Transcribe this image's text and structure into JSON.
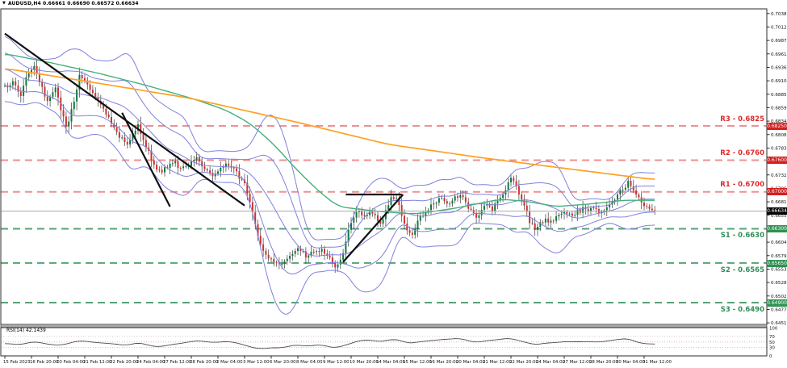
{
  "title": {
    "marker": "▼",
    "text": "AUDUSD,H4 0.66661 0.66690 0.66572 0.66634"
  },
  "chart_data": {
    "type": "candlestick",
    "symbol": "AUDUSD",
    "timeframe": "H4",
    "last_ohlc": {
      "open": 0.66661,
      "high": 0.6669,
      "low": 0.66572,
      "close": 0.66634
    },
    "price_axis": {
      "ticks": [
        "0.70380",
        "0.70125",
        "0.69870",
        "0.69615",
        "0.69360",
        "0.69105",
        "0.68850",
        "0.68595",
        "0.68340",
        "0.68085",
        "0.67830",
        "0.67575",
        "0.67320",
        "0.67065",
        "0.66810",
        "0.66555",
        "0.66300",
        "0.66045",
        "0.65790",
        "0.65535",
        "0.65280",
        "0.65025",
        "0.64770",
        "0.64515"
      ],
      "current_badge": "0.66634"
    },
    "time_axis": {
      "labels": [
        "15 Feb 2023",
        "16 Feb 20:00",
        "20 Feb 04:00",
        "21 Feb 12:00",
        "22 Feb 20:00",
        "24 Feb 04:00",
        "27 Feb 12:00",
        "28 Feb 20:00",
        "2 Mar 04:00",
        "3 Mar 12:00",
        "6 Mar 20:00",
        "8 Mar 04:00",
        "9 Mar 12:00",
        "10 Mar 20:00",
        "14 Mar 04:00",
        "15 Mar 12:00",
        "16 Mar 20:00",
        "20 Mar 04:00",
        "21 Mar 12:00",
        "22 Mar 20:00",
        "24 Mar 04:00",
        "27 Mar 12:00",
        "28 Mar 20:00",
        "30 Mar 04:00",
        "31 Mar 12:00"
      ]
    },
    "levels": {
      "r3": {
        "label": "R3 - 0.6825",
        "price": 0.6825,
        "badge": "0.68250"
      },
      "r2": {
        "label": "R2 - 0.6760",
        "price": 0.676,
        "badge": "0.67600"
      },
      "r1": {
        "label": "R1 - 0.6700",
        "price": 0.67,
        "badge": "0.67000"
      },
      "s1": {
        "label": "S1 - 0.6630",
        "price": 0.663,
        "badge": "0.66300"
      },
      "s2": {
        "label": "S2 - 0.6565",
        "price": 0.6565,
        "badge": "0.65650"
      },
      "s3": {
        "label": "S3 - 0.6490",
        "price": 0.649,
        "badge": "0.64900"
      }
    },
    "current_price": 0.66634,
    "bars": {
      "count": 245,
      "close_path_anchors": [
        [
          0,
          0.6898
        ],
        [
          3,
          0.6908
        ],
        [
          6,
          0.6885
        ],
        [
          9,
          0.6928
        ],
        [
          11,
          0.6934
        ],
        [
          14,
          0.6895
        ],
        [
          16,
          0.6868
        ],
        [
          19,
          0.6898
        ],
        [
          21,
          0.6858
        ],
        [
          23,
          0.6822
        ],
        [
          26,
          0.6868
        ],
        [
          28,
          0.6922
        ],
        [
          31,
          0.6905
        ],
        [
          34,
          0.688
        ],
        [
          37,
          0.6858
        ],
        [
          40,
          0.683
        ],
        [
          43,
          0.6806
        ],
        [
          46,
          0.6786
        ],
        [
          48,
          0.6808
        ],
        [
          50,
          0.6828
        ],
        [
          52,
          0.68
        ],
        [
          55,
          0.6762
        ],
        [
          58,
          0.6738
        ],
        [
          61,
          0.6748
        ],
        [
          64,
          0.6756
        ],
        [
          66,
          0.6742
        ],
        [
          69,
          0.675
        ],
        [
          72,
          0.6762
        ],
        [
          75,
          0.6745
        ],
        [
          78,
          0.673
        ],
        [
          81,
          0.6744
        ],
        [
          84,
          0.6752
        ],
        [
          87,
          0.6735
        ],
        [
          90,
          0.6714
        ],
        [
          92,
          0.668
        ],
        [
          94,
          0.6636
        ],
        [
          96,
          0.66
        ],
        [
          98,
          0.6582
        ],
        [
          101,
          0.657
        ],
        [
          104,
          0.6562
        ],
        [
          107,
          0.658
        ],
        [
          110,
          0.6592
        ],
        [
          113,
          0.6578
        ],
        [
          116,
          0.6585
        ],
        [
          119,
          0.659
        ],
        [
          122,
          0.6572
        ],
        [
          124,
          0.6558
        ],
        [
          127,
          0.658
        ],
        [
          129,
          0.6624
        ],
        [
          131,
          0.6654
        ],
        [
          133,
          0.666
        ],
        [
          135,
          0.665
        ],
        [
          137,
          0.6668
        ],
        [
          139,
          0.6652
        ],
        [
          141,
          0.6642
        ],
        [
          143,
          0.6662
        ],
        [
          145,
          0.6688
        ],
        [
          147,
          0.6684
        ],
        [
          149,
          0.6658
        ],
        [
          151,
          0.6625
        ],
        [
          153,
          0.6618
        ],
        [
          155,
          0.6648
        ],
        [
          157,
          0.6658
        ],
        [
          159,
          0.6668
        ],
        [
          161,
          0.6678
        ],
        [
          163,
          0.6688
        ],
        [
          165,
          0.6682
        ],
        [
          167,
          0.6675
        ],
        [
          169,
          0.669
        ],
        [
          171,
          0.6695
        ],
        [
          173,
          0.6682
        ],
        [
          175,
          0.6662
        ],
        [
          177,
          0.6652
        ],
        [
          179,
          0.6665
        ],
        [
          181,
          0.6675
        ],
        [
          183,
          0.6668
        ],
        [
          185,
          0.668
        ],
        [
          187,
          0.6692
        ],
        [
          189,
          0.6715
        ],
        [
          190,
          0.6727
        ],
        [
          191,
          0.6719
        ],
        [
          193,
          0.6698
        ],
        [
          195,
          0.6672
        ],
        [
          197,
          0.6645
        ],
        [
          199,
          0.6632
        ],
        [
          201,
          0.664
        ],
        [
          203,
          0.6648
        ],
        [
          205,
          0.6642
        ],
        [
          207,
          0.6652
        ],
        [
          209,
          0.6658
        ],
        [
          211,
          0.6662
        ],
        [
          213,
          0.6655
        ],
        [
          215,
          0.6662
        ],
        [
          217,
          0.6668
        ],
        [
          219,
          0.6662
        ],
        [
          221,
          0.6668
        ],
        [
          223,
          0.666
        ],
        [
          225,
          0.6668
        ],
        [
          227,
          0.6678
        ],
        [
          229,
          0.6688
        ],
        [
          231,
          0.67
        ],
        [
          233,
          0.6712
        ],
        [
          234,
          0.6718
        ],
        [
          236,
          0.67
        ],
        [
          238,
          0.6686
        ],
        [
          240,
          0.6672
        ],
        [
          242,
          0.6668
        ],
        [
          244,
          0.66634
        ]
      ]
    },
    "indicators": {
      "bollinger": {
        "period": 20,
        "deviations": [
          1,
          2
        ],
        "color": "#8080de"
      },
      "ma_green": {
        "color": "#44b078",
        "anchors": [
          [
            0,
            0.6962
          ],
          [
            17,
            0.6945
          ],
          [
            35,
            0.6925
          ],
          [
            53,
            0.6902
          ],
          [
            71,
            0.6876
          ],
          [
            83,
            0.6855
          ],
          [
            92,
            0.683
          ],
          [
            101,
            0.679
          ],
          [
            109,
            0.6745
          ],
          [
            117,
            0.6705
          ],
          [
            125,
            0.6672
          ],
          [
            140,
            0.6663
          ],
          [
            154,
            0.6658
          ],
          [
            168,
            0.6668
          ],
          [
            186,
            0.6686
          ],
          [
            196,
            0.6682
          ],
          [
            207,
            0.6672
          ],
          [
            222,
            0.6678
          ],
          [
            232,
            0.6684
          ],
          [
            244,
            0.6684
          ]
        ]
      },
      "ma_orange": {
        "color": "#ffa024",
        "anchors": [
          [
            0,
            0.6934
          ],
          [
            35,
            0.6906
          ],
          [
            69,
            0.6878
          ],
          [
            108,
            0.6834
          ],
          [
            144,
            0.679
          ],
          [
            180,
            0.6764
          ],
          [
            211,
            0.6744
          ],
          [
            244,
            0.6723
          ]
        ]
      },
      "rsi": {
        "label": "RSI(14) 42.1439",
        "period": 14,
        "value": 42.1439,
        "levels": [
          30,
          50,
          70
        ],
        "scale_labels": [
          "100",
          "70",
          "50",
          "30",
          "0"
        ],
        "range": [
          0,
          100
        ],
        "anchors": [
          [
            0,
            45
          ],
          [
            6,
            40
          ],
          [
            11,
            52
          ],
          [
            16,
            42
          ],
          [
            21,
            38
          ],
          [
            28,
            55
          ],
          [
            34,
            48
          ],
          [
            40,
            44
          ],
          [
            46,
            38
          ],
          [
            50,
            48
          ],
          [
            55,
            36
          ],
          [
            58,
            32
          ],
          [
            62,
            40
          ],
          [
            66,
            45
          ],
          [
            69,
            50
          ],
          [
            72,
            55
          ],
          [
            78,
            48
          ],
          [
            84,
            52
          ],
          [
            88,
            45
          ],
          [
            92,
            32
          ],
          [
            96,
            25
          ],
          [
            101,
            30
          ],
          [
            104,
            28
          ],
          [
            107,
            36
          ],
          [
            110,
            40
          ],
          [
            113,
            34
          ],
          [
            116,
            38
          ],
          [
            119,
            40
          ],
          [
            122,
            32
          ],
          [
            124,
            28
          ],
          [
            129,
            42
          ],
          [
            133,
            55
          ],
          [
            137,
            58
          ],
          [
            141,
            50
          ],
          [
            145,
            60
          ],
          [
            149,
            56
          ],
          [
            151,
            44
          ],
          [
            155,
            50
          ],
          [
            159,
            54
          ],
          [
            163,
            58
          ],
          [
            169,
            62
          ],
          [
            171,
            63
          ],
          [
            175,
            52
          ],
          [
            177,
            48
          ],
          [
            181,
            55
          ],
          [
            185,
            58
          ],
          [
            189,
            64
          ],
          [
            191,
            60
          ],
          [
            195,
            50
          ],
          [
            199,
            40
          ],
          [
            203,
            46
          ],
          [
            207,
            48
          ],
          [
            211,
            52
          ],
          [
            215,
            50
          ],
          [
            219,
            52
          ],
          [
            223,
            49
          ],
          [
            227,
            55
          ],
          [
            231,
            60
          ],
          [
            234,
            63
          ],
          [
            236,
            54
          ],
          [
            238,
            47
          ],
          [
            240,
            44
          ],
          [
            244,
            42.14
          ]
        ]
      }
    },
    "trendlines": [
      {
        "name": "downtrend-major",
        "from": [
          0,
          0.7
        ],
        "to": [
          90,
          0.6674
        ]
      },
      {
        "name": "downtrend-steep",
        "from": [
          44,
          0.685
        ],
        "to": [
          62,
          0.6672
        ]
      },
      {
        "name": "triangle-top",
        "from": [
          128,
          0.6695
        ],
        "to": [
          149,
          0.6695
        ]
      },
      {
        "name": "triangle-support",
        "from": [
          127,
          0.6567
        ],
        "to": [
          149.5,
          0.6695
        ]
      }
    ],
    "colors": {
      "candle_up": "#0c7a3c",
      "candle_down": "#d23030",
      "wick": "#3a3a3a",
      "resistance": "#f09090",
      "support": "#55a375",
      "trendline": "#101010",
      "current_line": "#a8a8a8",
      "rsi_line": "#4a4a4a",
      "rsi_levels": "#cdb0b0",
      "frame": "#2b2b2b",
      "axis_text": "#111111"
    }
  }
}
